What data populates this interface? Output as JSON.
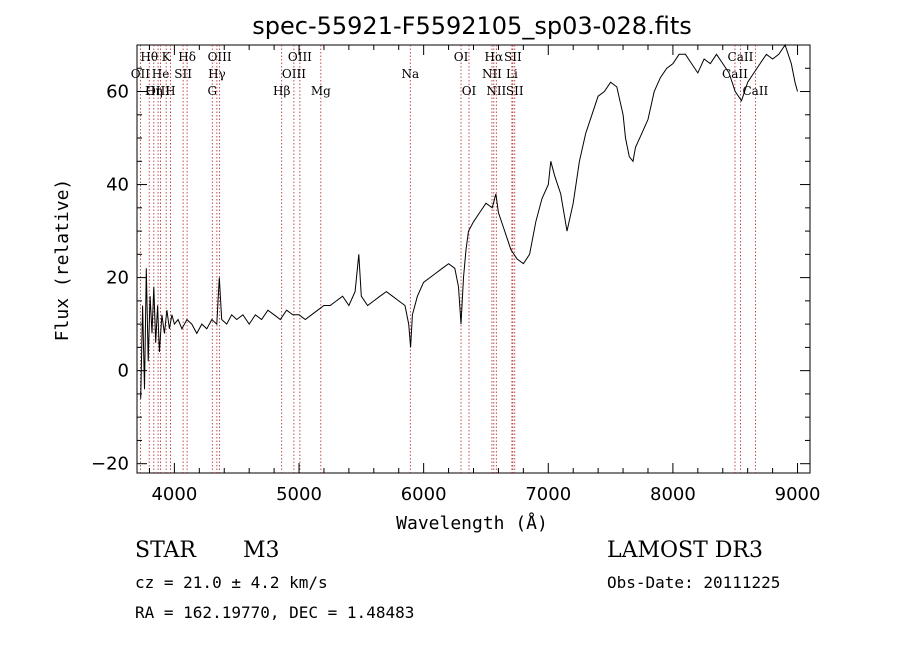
{
  "chart_data": {
    "type": "line",
    "title": "spec-55921-F5592105_sp03-028.fits",
    "xlabel": "Wavelength (Å)",
    "ylabel": "Flux (relative)",
    "xlim": [
      3700,
      9100
    ],
    "ylim": [
      -22,
      70
    ],
    "x_ticks": [
      4000,
      5000,
      6000,
      7000,
      8000,
      9000
    ],
    "y_ticks": [
      -20,
      0,
      20,
      40,
      60
    ],
    "x_tick_labels": [
      "4000",
      "5000",
      "6000",
      "7000",
      "8000",
      "9000"
    ],
    "y_tick_labels": [
      "−20",
      "0",
      "20",
      "40",
      "60"
    ],
    "series": [
      {
        "name": "flux",
        "x": [
          3730,
          3745,
          3760,
          3775,
          3790,
          3805,
          3820,
          3835,
          3850,
          3865,
          3880,
          3900,
          3920,
          3940,
          3960,
          3980,
          4000,
          4030,
          4060,
          4100,
          4140,
          4180,
          4220,
          4260,
          4300,
          4340,
          4360,
          4380,
          4420,
          4460,
          4500,
          4550,
          4600,
          4650,
          4700,
          4750,
          4800,
          4850,
          4900,
          4950,
          5000,
          5050,
          5100,
          5150,
          5200,
          5250,
          5300,
          5350,
          5400,
          5450,
          5480,
          5500,
          5550,
          5600,
          5650,
          5700,
          5750,
          5800,
          5850,
          5880,
          5895,
          5910,
          5950,
          6000,
          6050,
          6100,
          6150,
          6200,
          6250,
          6280,
          6300,
          6320,
          6340,
          6360,
          6400,
          6450,
          6500,
          6550,
          6580,
          6600,
          6650,
          6700,
          6750,
          6800,
          6850,
          6900,
          6950,
          7000,
          7020,
          7050,
          7100,
          7150,
          7200,
          7250,
          7300,
          7350,
          7400,
          7450,
          7500,
          7550,
          7600,
          7620,
          7650,
          7680,
          7700,
          7750,
          7800,
          7850,
          7900,
          7950,
          8000,
          8050,
          8100,
          8150,
          8200,
          8250,
          8300,
          8350,
          8400,
          8450,
          8500,
          8550,
          8600,
          8650,
          8700,
          8750,
          8800,
          8850,
          8900,
          8950,
          8980,
          9000
        ],
        "y": [
          -6,
          14,
          -4,
          22,
          2,
          16,
          8,
          18,
          6,
          14,
          4,
          12,
          8,
          13,
          9,
          12,
          10,
          11,
          9,
          11,
          10,
          8,
          10,
          9,
          11,
          10,
          20,
          11,
          10,
          12,
          11,
          12,
          10,
          12,
          11,
          13,
          12,
          11,
          13,
          12,
          12,
          11,
          12,
          13,
          14,
          14,
          15,
          16,
          14,
          17,
          25,
          16,
          14,
          15,
          16,
          17,
          16,
          15,
          14,
          10,
          5,
          12,
          16,
          19,
          20,
          21,
          22,
          23,
          22,
          18,
          10,
          20,
          26,
          30,
          32,
          34,
          36,
          35,
          38,
          34,
          30,
          26,
          24,
          23,
          25,
          32,
          37,
          40,
          45,
          42,
          38,
          30,
          36,
          45,
          51,
          55,
          59,
          60,
          62,
          61,
          55,
          50,
          46,
          45,
          48,
          51,
          54,
          60,
          63,
          65,
          66,
          68,
          68,
          66,
          64,
          67,
          66,
          68,
          66,
          64,
          60,
          58,
          62,
          64,
          66,
          68,
          67,
          68,
          70,
          66,
          62,
          60
        ]
      }
    ],
    "emission_lines": [
      {
        "label": "Hθ",
        "wl": 3798,
        "row": 0
      },
      {
        "label": "OII",
        "wl": 3727,
        "row": 1
      },
      {
        "label": "OIII",
        "wl": 3869,
        "row": 2
      },
      {
        "label": "K",
        "wl": 3934,
        "row": 0
      },
      {
        "label": "He",
        "wl": 3889,
        "row": 1
      },
      {
        "label": "Hη",
        "wl": 3835,
        "row": 2
      },
      {
        "label": "Hδ",
        "wl": 4102,
        "row": 0
      },
      {
        "label": "SII",
        "wl": 4070,
        "row": 1
      },
      {
        "label": "H",
        "wl": 3968,
        "row": 2
      },
      {
        "label": "OIII",
        "wl": 4363,
        "row": 0
      },
      {
        "label": "Hγ",
        "wl": 4341,
        "row": 1
      },
      {
        "label": "G",
        "wl": 4304,
        "row": 2
      },
      {
        "label": "OIII",
        "wl": 5007,
        "row": 0
      },
      {
        "label": "OIII",
        "wl": 4959,
        "row": 1
      },
      {
        "label": "Hβ",
        "wl": 4861,
        "row": 2
      },
      {
        "label": "Mg",
        "wl": 5175,
        "row": 2
      },
      {
        "label": "Na",
        "wl": 5893,
        "row": 1
      },
      {
        "label": "OI",
        "wl": 6300,
        "row": 0
      },
      {
        "label": "OI",
        "wl": 6364,
        "row": 2
      },
      {
        "label": "Hα",
        "wl": 6563,
        "row": 0
      },
      {
        "label": "NII",
        "wl": 6548,
        "row": 1
      },
      {
        "label": "NII",
        "wl": 6583,
        "row": 2
      },
      {
        "label": "SII",
        "wl": 6716,
        "row": 0
      },
      {
        "label": "Li",
        "wl": 6708,
        "row": 1
      },
      {
        "label": "SII",
        "wl": 6731,
        "row": 2
      },
      {
        "label": "CaII",
        "wl": 8542,
        "row": 0
      },
      {
        "label": "CaII",
        "wl": 8498,
        "row": 1
      },
      {
        "label": "CaII",
        "wl": 8662,
        "row": 2
      }
    ]
  },
  "info": {
    "object_class": "STAR",
    "subclass": "M3",
    "survey": "LAMOST DR3",
    "cz": "cz = 21.0 ± 4.2 km/s",
    "obs_date": "Obs-Date: 20111225",
    "coords": "RA = 162.19770, DEC =    1.48483"
  },
  "colors": {
    "line": "#000000",
    "marker": "#b22222"
  }
}
